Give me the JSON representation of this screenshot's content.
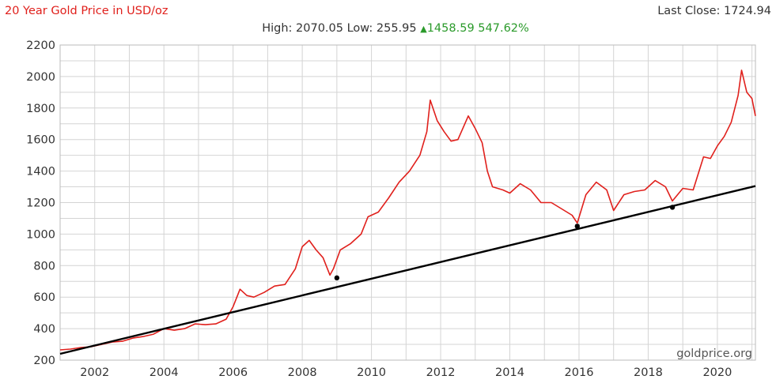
{
  "header": {
    "title": "20 Year Gold Price in USD/oz",
    "last_close_label": "Last Close:",
    "last_close_value": "1724.94",
    "high_label": "High:",
    "high_value": "2070.05",
    "low_label": "Low:",
    "low_value": "255.95",
    "change_value": "1458.59",
    "change_pct": "547.62%"
  },
  "source": "goldprice.org",
  "colors": {
    "price_line": "#e0201c",
    "trend_line": "#000000",
    "grid": "#d4d4d4",
    "up": "#2a9a2a"
  },
  "icons": {
    "change_direction": "triangle-up-icon"
  },
  "chart_data": {
    "type": "line",
    "title": "20 Year Gold Price in USD/oz",
    "xlim": [
      2001.0,
      2021.1
    ],
    "ylim": [
      200,
      2200
    ],
    "x_ticks": [
      2002,
      2004,
      2006,
      2008,
      2010,
      2012,
      2014,
      2016,
      2018,
      2020
    ],
    "y_ticks": [
      200,
      400,
      600,
      800,
      1000,
      1200,
      1400,
      1600,
      1800,
      2000,
      2200
    ],
    "grid": true,
    "series": [
      {
        "role": "gold price",
        "color": "#e0201c",
        "x": [
          2001.0,
          2001.3,
          2001.6,
          2001.9,
          2002.2,
          2002.5,
          2002.8,
          2003.1,
          2003.4,
          2003.7,
          2004.0,
          2004.3,
          2004.6,
          2004.9,
          2005.2,
          2005.5,
          2005.8,
          2006.0,
          2006.2,
          2006.4,
          2006.6,
          2006.9,
          2007.2,
          2007.5,
          2007.8,
          2008.0,
          2008.2,
          2008.4,
          2008.6,
          2008.8,
          2008.9,
          2009.1,
          2009.4,
          2009.7,
          2009.9,
          2010.2,
          2010.5,
          2010.8,
          2011.1,
          2011.4,
          2011.6,
          2011.7,
          2011.9,
          2012.1,
          2012.3,
          2012.5,
          2012.8,
          2013.0,
          2013.2,
          2013.35,
          2013.5,
          2013.8,
          2014.0,
          2014.3,
          2014.6,
          2014.9,
          2015.2,
          2015.5,
          2015.8,
          2015.95,
          2016.2,
          2016.5,
          2016.8,
          2017.0,
          2017.3,
          2017.6,
          2017.9,
          2018.2,
          2018.5,
          2018.7,
          2019.0,
          2019.3,
          2019.6,
          2019.8,
          2020.0,
          2020.2,
          2020.4,
          2020.6,
          2020.7,
          2020.85,
          2021.0,
          2021.1
        ],
        "y": [
          265,
          270,
          280,
          285,
          300,
          315,
          320,
          340,
          350,
          365,
          400,
          390,
          400,
          430,
          425,
          430,
          460,
          540,
          650,
          610,
          600,
          630,
          670,
          680,
          780,
          920,
          960,
          900,
          850,
          740,
          780,
          900,
          940,
          1000,
          1110,
          1140,
          1230,
          1330,
          1400,
          1500,
          1650,
          1850,
          1720,
          1650,
          1590,
          1600,
          1750,
          1670,
          1580,
          1400,
          1300,
          1280,
          1260,
          1320,
          1280,
          1200,
          1200,
          1160,
          1120,
          1070,
          1250,
          1330,
          1280,
          1150,
          1250,
          1270,
          1280,
          1340,
          1300,
          1210,
          1290,
          1280,
          1490,
          1480,
          1560,
          1620,
          1710,
          1880,
          2040,
          1900,
          1860,
          1750
        ]
      },
      {
        "role": "trend line",
        "color": "#000000",
        "x": [
          2001.0,
          2021.1
        ],
        "y": [
          240,
          1305
        ],
        "markers_x": [
          2009.0,
          2015.95,
          2018.7
        ],
        "markers_y": [
          722,
          1050,
          1170
        ]
      }
    ]
  }
}
